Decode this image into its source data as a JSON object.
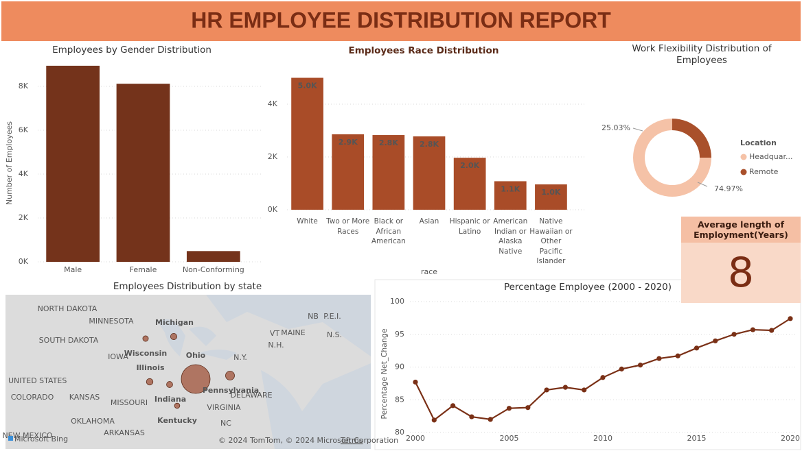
{
  "header": {
    "title": "HR EMPLOYEE DISTRIBUTION REPORT"
  },
  "card": {
    "title": "Average length of Employment(Years)",
    "value": 8
  },
  "chart_data": [
    {
      "type": "bar",
      "title": "Employees by Gender Distribution",
      "y_label": "Number of Employees",
      "categories": [
        "Male",
        "Female",
        "Non-Conforming"
      ],
      "values": [
        8940,
        8120,
        490
      ],
      "color": "#74331b",
      "ylim": [
        0,
        9000
      ],
      "yticks": [
        {
          "value": 0,
          "label": "0K"
        },
        {
          "value": 2000,
          "label": "2K"
        },
        {
          "value": 4000,
          "label": "4K"
        },
        {
          "value": 6000,
          "label": "6K"
        },
        {
          "value": 8000,
          "label": "8K"
        }
      ],
      "grid": true
    },
    {
      "type": "bar",
      "title": "Employees Race Distribution",
      "x_label": "race",
      "categories": [
        "White",
        "Two or More Races",
        "Black or African American",
        "Asian",
        "Hispanic or Latino",
        "American Indian or Alaska Native",
        "Native Hawaiian or Other Pacific Islander"
      ],
      "values": [
        5000,
        2860,
        2830,
        2780,
        1970,
        1080,
        960
      ],
      "value_labels": [
        "5.0K",
        "2.9K",
        "2.8K",
        "2.8K",
        "2.0K",
        "1.1K",
        "1.0K"
      ],
      "color": "#a94c28",
      "ylim": [
        0,
        5000
      ],
      "yticks": [
        {
          "value": 0,
          "label": "0K"
        },
        {
          "value": 2000,
          "label": "2K"
        },
        {
          "value": 4000,
          "label": "4K"
        }
      ],
      "grid": true
    },
    {
      "type": "donut",
      "title": "Work Flexibility Distribution of Employees",
      "legend_title": "Location",
      "categories": [
        "Headquar...",
        "Remote"
      ],
      "values": [
        74.97,
        25.03
      ],
      "value_labels": [
        "74.97%",
        "25.03%"
      ],
      "colors": [
        "#f5c2a7",
        "#a9502b"
      ]
    },
    {
      "type": "bubble_map",
      "title": "Employees Distribution by state",
      "categories": [
        "Michigan",
        "Wisconsin",
        "Ohio",
        "Illinois",
        "Pennsylvania",
        "Indiana",
        "Kentucky"
      ],
      "values": [
        650,
        500,
        13500,
        700,
        1300,
        600,
        450
      ],
      "color": "#a0533a",
      "country_label": "UNITED STATES",
      "map_labels": [
        "NORTH DAKOTA",
        "MINNESOTA",
        "SOUTH DAKOTA",
        "IOWA",
        "COLORADO",
        "KANSAS",
        "MISSOURI",
        "OKLAHOMA",
        "ARKANSAS",
        "NEW MEXICO",
        "N.Y.",
        "MAINE",
        "NB",
        "P.E.I.",
        "N.S.",
        "VT",
        "N.H.",
        "VIRGINIA",
        "DELAWARE",
        "NC"
      ],
      "attribution": "© 2024 TomTom, © 2024 Microsoft Corporation",
      "terms": "Terms",
      "logo": "Microsoft Bing"
    },
    {
      "type": "line",
      "title": "Percentage Employee (2000 - 2020)",
      "y_label": "Percentage Net_Change",
      "x": [
        2000,
        2001,
        2002,
        2003,
        2004,
        2005,
        2006,
        2007,
        2008,
        2009,
        2010,
        2011,
        2012,
        2013,
        2014,
        2015,
        2016,
        2017,
        2018,
        2019,
        2020
      ],
      "values": [
        87.7,
        81.9,
        84.1,
        82.4,
        82.0,
        83.7,
        83.8,
        86.5,
        86.9,
        86.5,
        88.4,
        89.7,
        90.3,
        91.3,
        91.7,
        92.9,
        94.0,
        95.0,
        95.7,
        95.6,
        97.4
      ],
      "color": "#7a3016",
      "xlim": [
        2000,
        2020
      ],
      "xticks": [
        2000,
        2005,
        2010,
        2015,
        2020
      ],
      "ylim": [
        80,
        100
      ],
      "yticks": [
        80,
        85,
        90,
        95,
        100
      ],
      "grid": true
    }
  ]
}
